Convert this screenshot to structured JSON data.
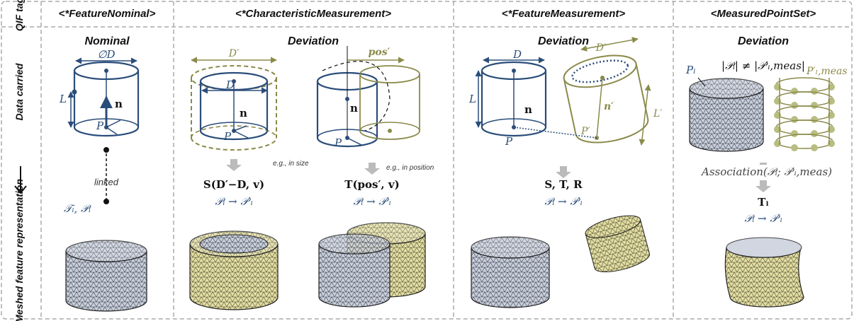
{
  "row_labels": [
    "QIF tag",
    "Data carried",
    "Meshed feature representation"
  ],
  "columns": [
    {
      "tag": "<*FeatureNominal>",
      "heading": "Nominal",
      "labels": [
        "∅D",
        "L",
        "n",
        "P",
        "linked",
        "𝒯ᵢ, 𝒫ᵢ"
      ]
    },
    {
      "tag": "<*CharacteristicMeasurement>",
      "heading": "Deviation",
      "labels": [
        "D′",
        "D",
        "n",
        "P",
        "e.g., in size",
        "S(D′−D, v)",
        "𝒫ᵢ → 𝒫′ᵢ",
        "pos′",
        "n",
        "P",
        "e.g., in position",
        "T(pos′, v)",
        "𝒫ᵢ → 𝒫′ᵢ"
      ]
    },
    {
      "tag": "<*FeatureMeasurement>",
      "heading": "Deviation",
      "labels": [
        "D",
        "D′",
        "L",
        "L′",
        "n",
        "n′",
        "P",
        "P′",
        "S, T, R",
        "𝒫ᵢ → 𝒫′ᵢ"
      ]
    },
    {
      "tag": "<MeasuredPointSet>",
      "heading": "Deviation",
      "labels": [
        "Pₗ",
        "|𝒫ᵢ| ≠ |𝒫′ᵢ,meas|",
        "P′ₗ,meas",
        "Association(𝒫ᵢ; 𝒫′ᵢ,meas)",
        "Tₗ",
        "𝒫ᵢ → 𝒫′ᵢ"
      ]
    }
  ]
}
